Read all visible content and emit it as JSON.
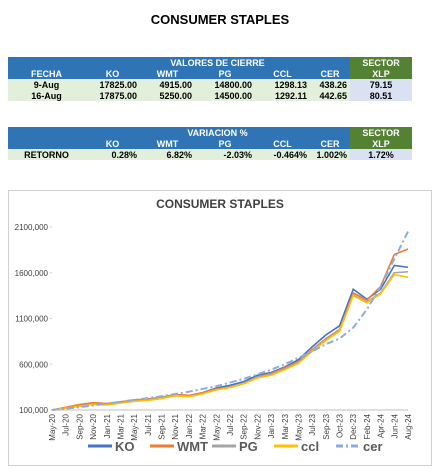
{
  "title": "CONSUMER STAPLES",
  "table1": {
    "group": "VALORES DE CIERRE",
    "sector": "SECTOR",
    "headers": [
      "FECHA",
      "KO",
      "WMT",
      "PG",
      "CCL",
      "CER",
      "XLP"
    ],
    "rows": [
      [
        "9-Aug",
        "17825.00",
        "4915.00",
        "14800.00",
        "1298.13",
        "438.26",
        "79.15"
      ],
      [
        "16-Aug",
        "17875.00",
        "5250.00",
        "14500.00",
        "1292.11",
        "442.65",
        "80.51"
      ]
    ]
  },
  "table2": {
    "group": "VARIACION %",
    "sector": "SECTOR",
    "headers": [
      "KO",
      "WMT",
      "PG",
      "CCL",
      "CER",
      "XLP"
    ],
    "rows": [
      [
        "RETORNO",
        "0.28%",
        "6.82%",
        "-2.03%",
        "-0.464%",
        "1.002%",
        "1.72%"
      ]
    ]
  },
  "chart_data": {
    "type": "line",
    "title": "CONSUMER STAPLES",
    "categories": [
      "May-20",
      "Jul-20",
      "Sep-20",
      "Nov-20",
      "Jan-21",
      "Mar-21",
      "May-21",
      "Jul-21",
      "Sep-21",
      "Nov-21",
      "Jan-22",
      "Mar-22",
      "May-22",
      "Jul-22",
      "Sep-22",
      "Nov-22",
      "Jan-23",
      "Mar-23",
      "May-23",
      "Jul-23",
      "Sep-23",
      "Oct-23",
      "Dec-23",
      "Feb-24",
      "Apr-24",
      "Jun-24",
      "Aug-24"
    ],
    "ylim": [
      100000,
      2100000
    ],
    "yticks": [
      {
        "value": 100000,
        "label": "100,000"
      },
      {
        "value": 600000,
        "label": "600,000"
      },
      {
        "value": 1100000,
        "label": "1100,000"
      },
      {
        "value": 1600000,
        "label": "1600,000"
      },
      {
        "value": 2100000,
        "label": "2100,000"
      }
    ],
    "legend": "bottom",
    "series": [
      {
        "name": "KO",
        "color": "#4472c4",
        "values": [
          100000,
          125000,
          150000,
          170000,
          165000,
          185000,
          205000,
          215000,
          235000,
          265000,
          255000,
          290000,
          340000,
          370000,
          410000,
          480000,
          510000,
          570000,
          650000,
          790000,
          920000,
          1020000,
          1420000,
          1310000,
          1420000,
          1680000,
          1660000
        ]
      },
      {
        "name": "WMT",
        "color": "#ed7d31",
        "values": [
          100000,
          130000,
          160000,
          180000,
          170000,
          190000,
          210000,
          220000,
          240000,
          270000,
          260000,
          290000,
          330000,
          350000,
          390000,
          460000,
          500000,
          560000,
          630000,
          760000,
          880000,
          980000,
          1380000,
          1300000,
          1450000,
          1800000,
          1860000
        ]
      },
      {
        "name": "PG",
        "color": "#a5a5a5",
        "values": [
          100000,
          120000,
          145000,
          165000,
          160000,
          180000,
          200000,
          210000,
          230000,
          260000,
          250000,
          280000,
          320000,
          350000,
          390000,
          460000,
          490000,
          550000,
          620000,
          750000,
          870000,
          970000,
          1360000,
          1280000,
          1380000,
          1600000,
          1610000
        ]
      },
      {
        "name": "ccl",
        "color": "#ffc000",
        "values": [
          100000,
          120000,
          140000,
          160000,
          155000,
          175000,
          195000,
          205000,
          225000,
          255000,
          245000,
          275000,
          320000,
          345000,
          385000,
          450000,
          480000,
          540000,
          610000,
          740000,
          860000,
          960000,
          1350000,
          1270000,
          1370000,
          1580000,
          1550000
        ]
      },
      {
        "name": "cer",
        "color": "#8faadc",
        "dashed": true,
        "values": [
          100000,
          115000,
          130000,
          150000,
          170000,
          190000,
          210000,
          230000,
          250000,
          275000,
          300000,
          330000,
          360000,
          400000,
          440000,
          490000,
          540000,
          600000,
          670000,
          740000,
          820000,
          880000,
          1000000,
          1200000,
          1450000,
          1750000,
          2050000
        ]
      }
    ]
  }
}
